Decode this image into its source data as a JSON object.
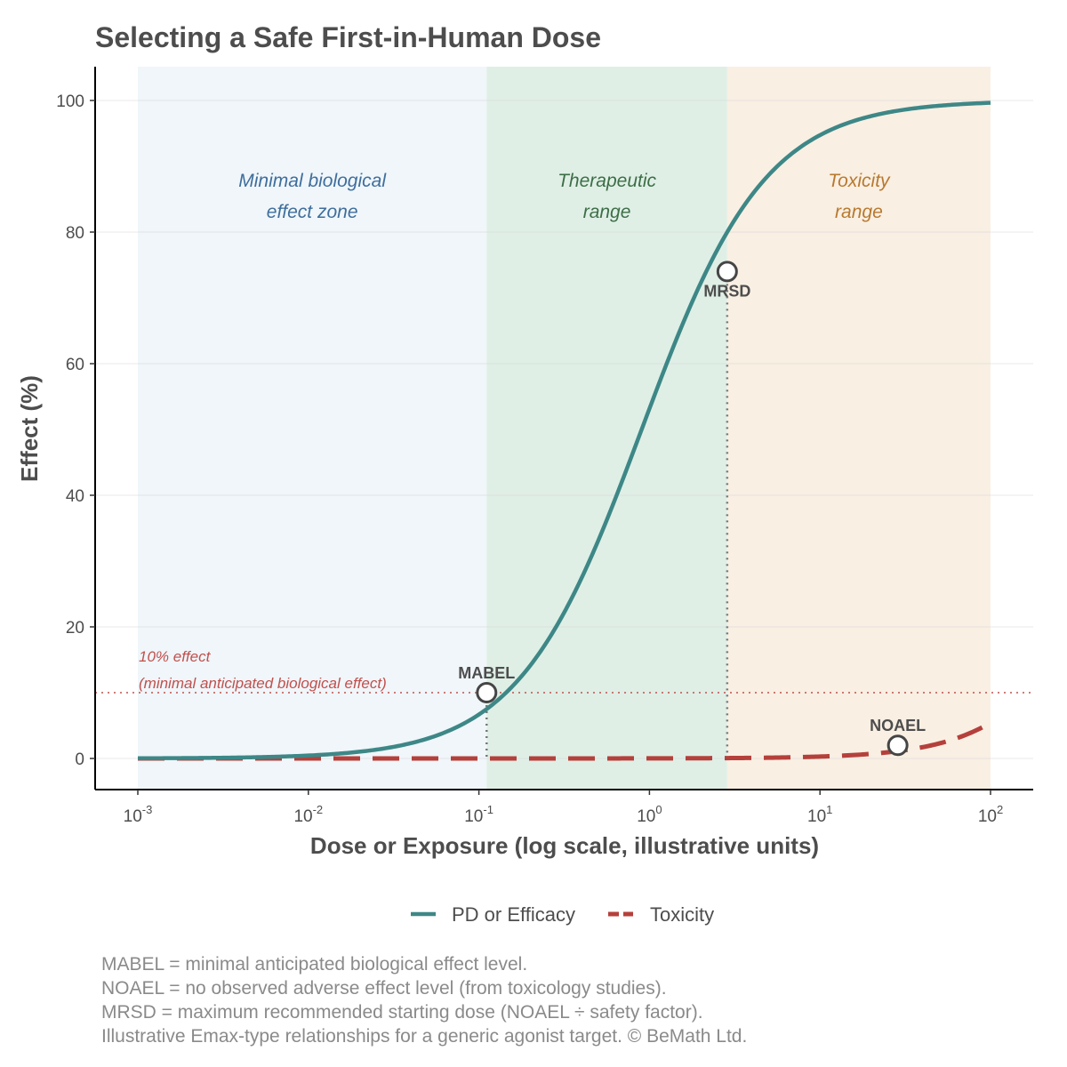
{
  "chart_data": {
    "type": "line",
    "title": "Selecting a Safe First-in-Human Dose",
    "xlabel": "Dose or Exposure (log scale, illustrative units)",
    "ylabel": "Effect (%)",
    "x_scale": "log10",
    "xlim": [
      0.001,
      100
    ],
    "ylim": [
      -5,
      105
    ],
    "x_ticks": [
      {
        "base": "10",
        "exp": "-3",
        "value": 0.001
      },
      {
        "base": "10",
        "exp": "-2",
        "value": 0.01
      },
      {
        "base": "10",
        "exp": "-1",
        "value": 0.1
      },
      {
        "base": "10",
        "exp": "0",
        "value": 1
      },
      {
        "base": "10",
        "exp": "1",
        "value": 10
      },
      {
        "base": "10",
        "exp": "2",
        "value": 100
      }
    ],
    "y_ticks": [
      "0",
      "20",
      "40",
      "60",
      "80",
      "100"
    ],
    "grid": "horizontal",
    "zones": [
      {
        "lines": [
          "Minimal biological",
          "effect zone"
        ],
        "x_from": 0.001,
        "x_to": 0.111,
        "fill": "#f0f6fa",
        "text_color": "#3f6e9c"
      },
      {
        "lines": [
          "Therapeutic",
          "range"
        ],
        "x_from": 0.111,
        "x_to": 2.857,
        "fill": "#dfefe6",
        "text_color": "#3d6e46"
      },
      {
        "lines": [
          "Toxicity",
          "range"
        ],
        "x_from": 2.857,
        "x_to": 100,
        "fill": "#f9efe3",
        "text_color": "#b8792f"
      }
    ],
    "threshold": {
      "y": 10,
      "lines": [
        "10% effect",
        "(minimal anticipated biological effect)"
      ],
      "color": "#c0504d"
    },
    "series": [
      {
        "name": "PD or Efficacy",
        "color": "#3e8787",
        "style": "solid",
        "x": [
          0.001,
          0.002,
          0.005,
          0.01,
          0.02,
          0.05,
          0.1,
          0.2,
          0.5,
          1,
          2,
          3,
          5,
          10,
          20,
          50,
          100
        ],
        "y": [
          0.1,
          0.2,
          0.5,
          1.1,
          2.2,
          5.3,
          9.2,
          18.6,
          38,
          53.2,
          67.1,
          74.5,
          82.8,
          90.5,
          94.8,
          97.6,
          98.8
        ]
      },
      {
        "name": "Toxicity",
        "color": "#b5403b",
        "style": "dashed",
        "x": [
          0.001,
          0.01,
          0.1,
          1,
          3,
          10,
          20,
          30,
          50,
          100
        ],
        "y": [
          0,
          0,
          0,
          0.1,
          0.3,
          0.7,
          1.3,
          2.1,
          3.6,
          6.6
        ]
      }
    ],
    "points": [
      {
        "label": "MABEL",
        "x": 0.111,
        "y": 10,
        "label_pos": "above",
        "drop_line": true
      },
      {
        "label": "MRSD",
        "x": 2.857,
        "y": 74,
        "label_pos": "below",
        "drop_line": true
      },
      {
        "label": "NOAEL",
        "x": 28.57,
        "y": 2,
        "label_pos": "above",
        "drop_line": false
      }
    ],
    "legend": {
      "position": "bottom",
      "entries": [
        "PD or Efficacy",
        "Toxicity"
      ]
    },
    "footnotes": [
      "MABEL = minimal anticipated biological effect level.",
      "NOAEL = no observed adverse effect level (from toxicology studies).",
      "MRSD = maximum recommended starting dose (NOAEL ÷ safety factor).",
      "Illustrative Emax-type relationships for a generic agonist target. © BeMath Ltd."
    ]
  }
}
